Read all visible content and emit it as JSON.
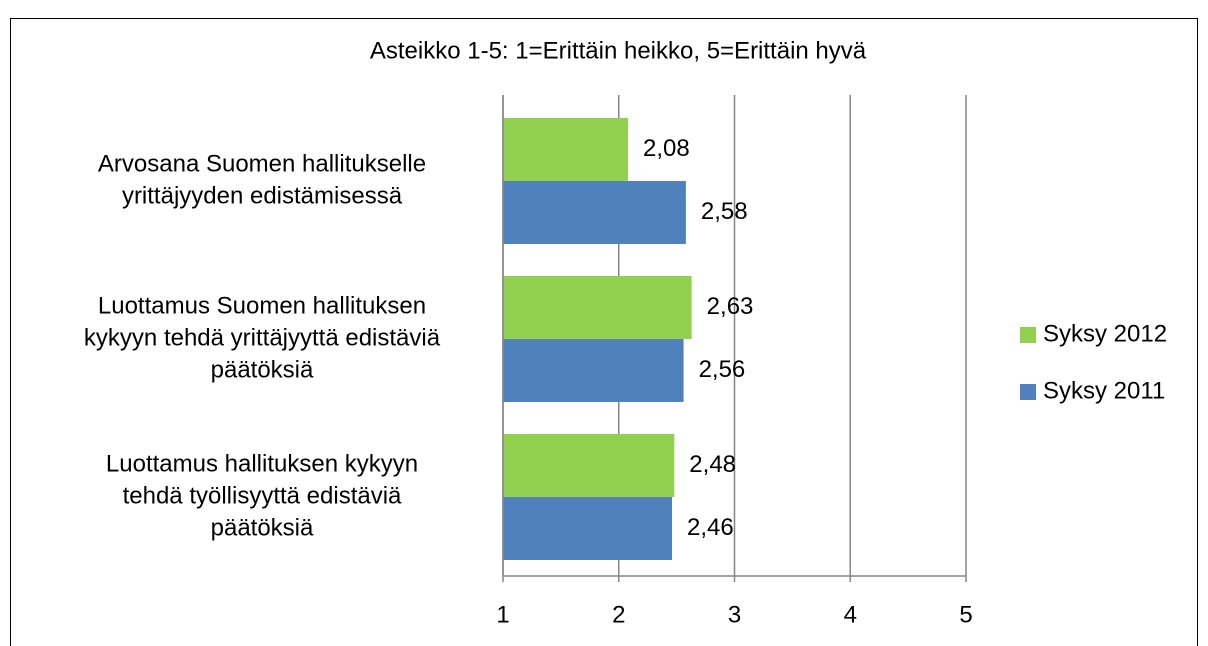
{
  "chart_data": {
    "type": "barh",
    "title": "Asteikko 1-5: 1=Erittäin heikko, 5=Erittäin hyvä",
    "categories": [
      [
        "Arvosana Suomen hallitukselle",
        "yrittäjyyden edistämisessä"
      ],
      [
        "Luottamus Suomen hallituksen",
        "kykyyn tehdä yrittäjyyttä edistäviä",
        "päätöksiä"
      ],
      [
        "Luottamus hallituksen kykyyn",
        "tehdä työllisyyttä edistäviä",
        "päätöksiä"
      ]
    ],
    "series": [
      {
        "name": "Syksy 2012",
        "color": "#92d050",
        "values": [
          2.08,
          2.63,
          2.48
        ],
        "value_labels": [
          "2,08",
          "2,63",
          "2,48"
        ]
      },
      {
        "name": "Syksy 2011",
        "color": "#4f81bd",
        "values": [
          2.58,
          2.56,
          2.46
        ],
        "value_labels": [
          "2,58",
          "2,56",
          "2,46"
        ]
      }
    ],
    "xlim": [
      1,
      5
    ],
    "xticks": [
      1,
      2,
      3,
      4,
      5
    ],
    "grid": true,
    "legend": "right"
  }
}
